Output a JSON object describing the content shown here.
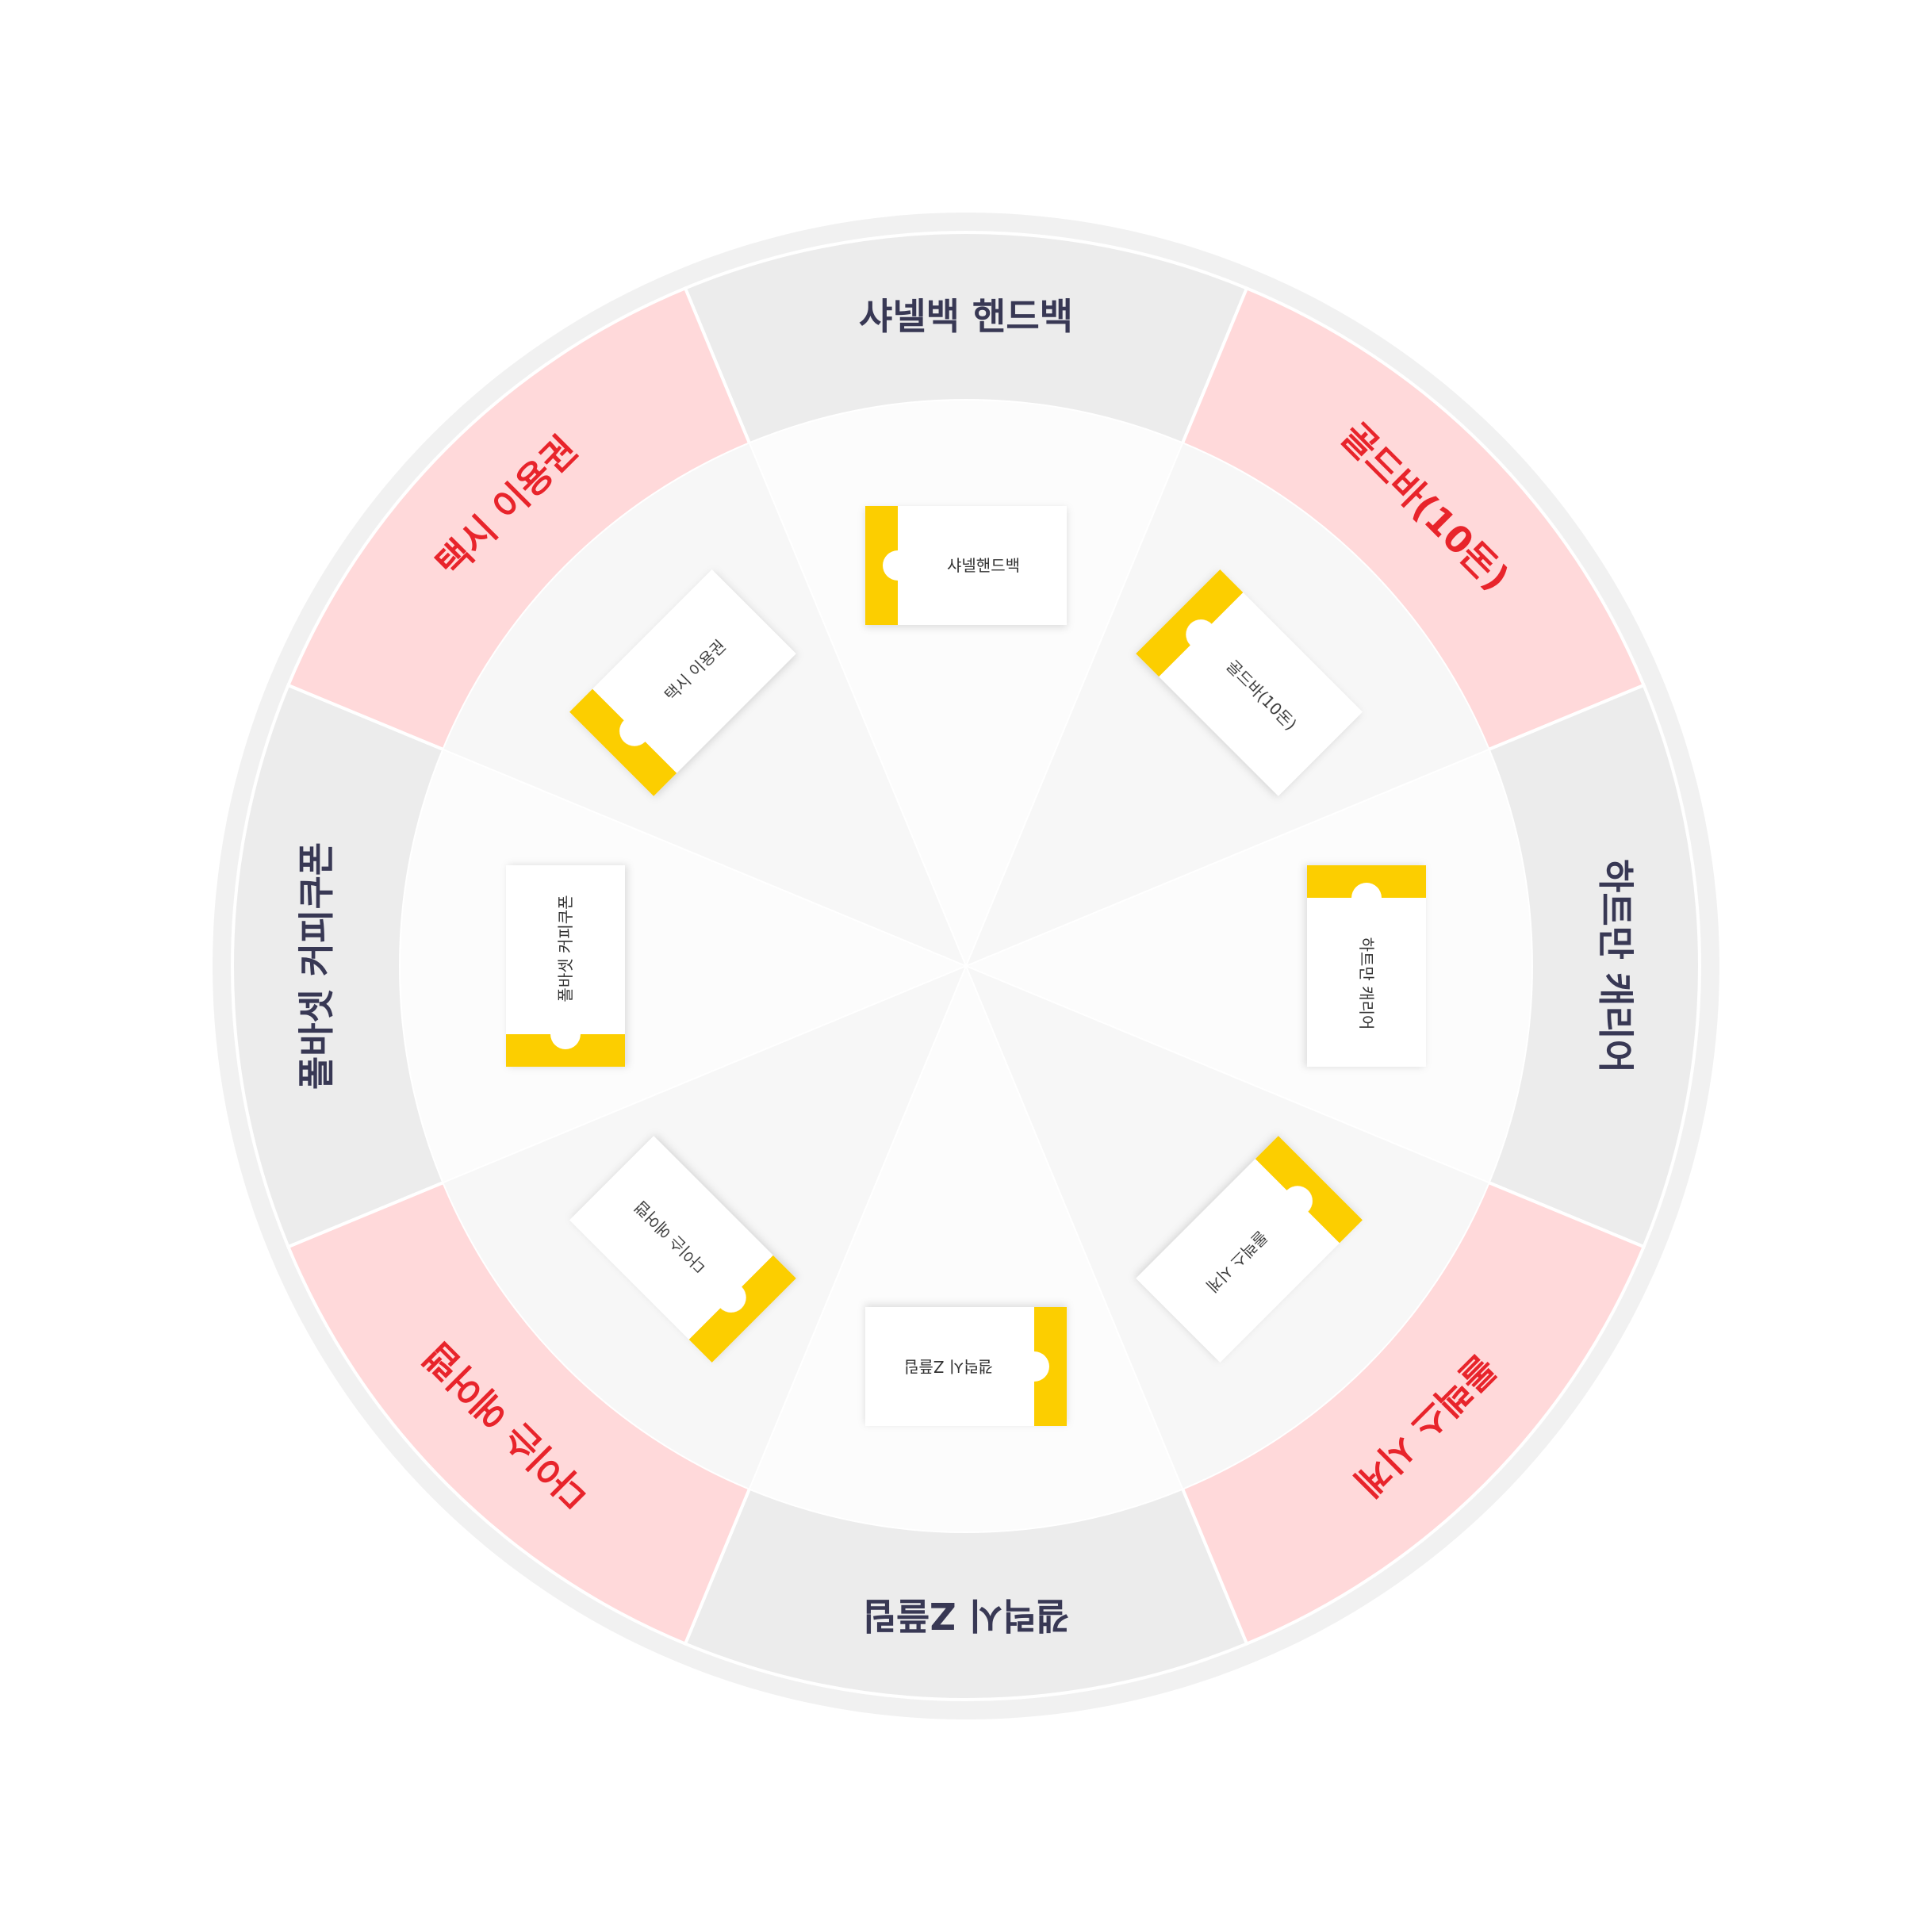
{
  "wheel": {
    "prizes": [
      {
        "label": "샤넬백 핸드백",
        "ticket_label": "샤넬핸드백",
        "tier": "normal"
      },
      {
        "label": "골드바(10돈)",
        "ticket_label": "골드바(10돈)",
        "tier": "highlight"
      },
      {
        "label": "하트만 캐리어",
        "ticket_label": "하트만 캐리어",
        "tier": "normal"
      },
      {
        "label": "롤렉스 시계",
        "ticket_label": "롤렉스 시계",
        "tier": "highlight"
      },
      {
        "label": "갤럭시 Z플립",
        "ticket_label": "갤럭시 Z플립",
        "tier": "normal"
      },
      {
        "label": "다이슨 에어랩",
        "ticket_label": "다이슨 에어랩",
        "tier": "highlight"
      },
      {
        "label": "폴바셋 커피쿠폰",
        "ticket_label": "폴바셋 커피쿠폰",
        "tier": "normal"
      },
      {
        "label": "택시 이용권",
        "ticket_label": "택시 이용권",
        "tier": "highlight"
      }
    ],
    "colors": {
      "normal_band": "#ececec",
      "highlight_band": "#ffd9da",
      "normal_text": "#383854",
      "highlight_text": "#e8242b",
      "inner_light": "#fcfcfc",
      "inner_alt": "#f7f7f7",
      "ticket_stub": "#fcce00",
      "ticket_body": "#ffffff",
      "border": "#f1f1f1"
    }
  }
}
